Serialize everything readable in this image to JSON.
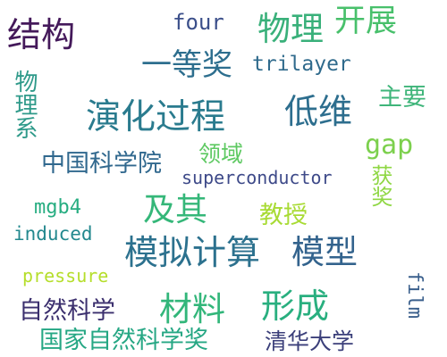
{
  "words": {
    "jiegou": {
      "text": "结构",
      "color": "#44195a"
    },
    "four": {
      "text": "four",
      "color": "#3b4f8a"
    },
    "wuli": {
      "text": "物理",
      "color": "#39b07a"
    },
    "kaizhan": {
      "text": "开展",
      "color": "#48c06b"
    },
    "yidengjiang": {
      "text": "一等奖",
      "color": "#2d6e8e"
    },
    "trilayer": {
      "text": "trilayer",
      "color": "#2f6a8c"
    },
    "wulixi": {
      "text": "物理系",
      "color": "#2f9a8a"
    },
    "zhuyao": {
      "text": "主要",
      "color": "#3fb57a"
    },
    "yanhuaguocheng": {
      "text": "演化过程",
      "color": "#2a7b8e"
    },
    "diwei": {
      "text": "低维",
      "color": "#2d6e8e"
    },
    "gap": {
      "text": "gap",
      "color": "#7cd04d"
    },
    "lingyu": {
      "text": "领域",
      "color": "#5ec962"
    },
    "zhongguokexueyuan": {
      "text": "中国科学院",
      "color": "#30688e"
    },
    "superconductor": {
      "text": "superconductor",
      "color": "#3e4a89"
    },
    "huojiang": {
      "text": "获奖",
      "color": "#8fd744"
    },
    "mgb4": {
      "text": "mgb4",
      "color": "#27ad81"
    },
    "jiqi": {
      "text": "及其",
      "color": "#35b779"
    },
    "jiaoshou": {
      "text": "教授",
      "color": "#a8db34"
    },
    "induced": {
      "text": "induced",
      "color": "#23888e"
    },
    "monijisuan": {
      "text": "模拟计算",
      "color": "#2c718e"
    },
    "moxing": {
      "text": "模型",
      "color": "#33638d"
    },
    "pressure": {
      "text": "pressure",
      "color": "#b5de2b"
    },
    "cailiao": {
      "text": "材料",
      "color": "#32b67a"
    },
    "xingcheng": {
      "text": "形成",
      "color": "#29af7f"
    },
    "ziranskexue": {
      "text": "自然科学",
      "color": "#3b2f6e"
    },
    "film": {
      "text": "film",
      "color": "#3a5f8c"
    },
    "guojiazirankexuejiang": {
      "text": "国家自然科学奖",
      "color": "#26a784"
    },
    "qinghuadaxue": {
      "text": "清华大学",
      "color": "#3b3f7a"
    }
  }
}
